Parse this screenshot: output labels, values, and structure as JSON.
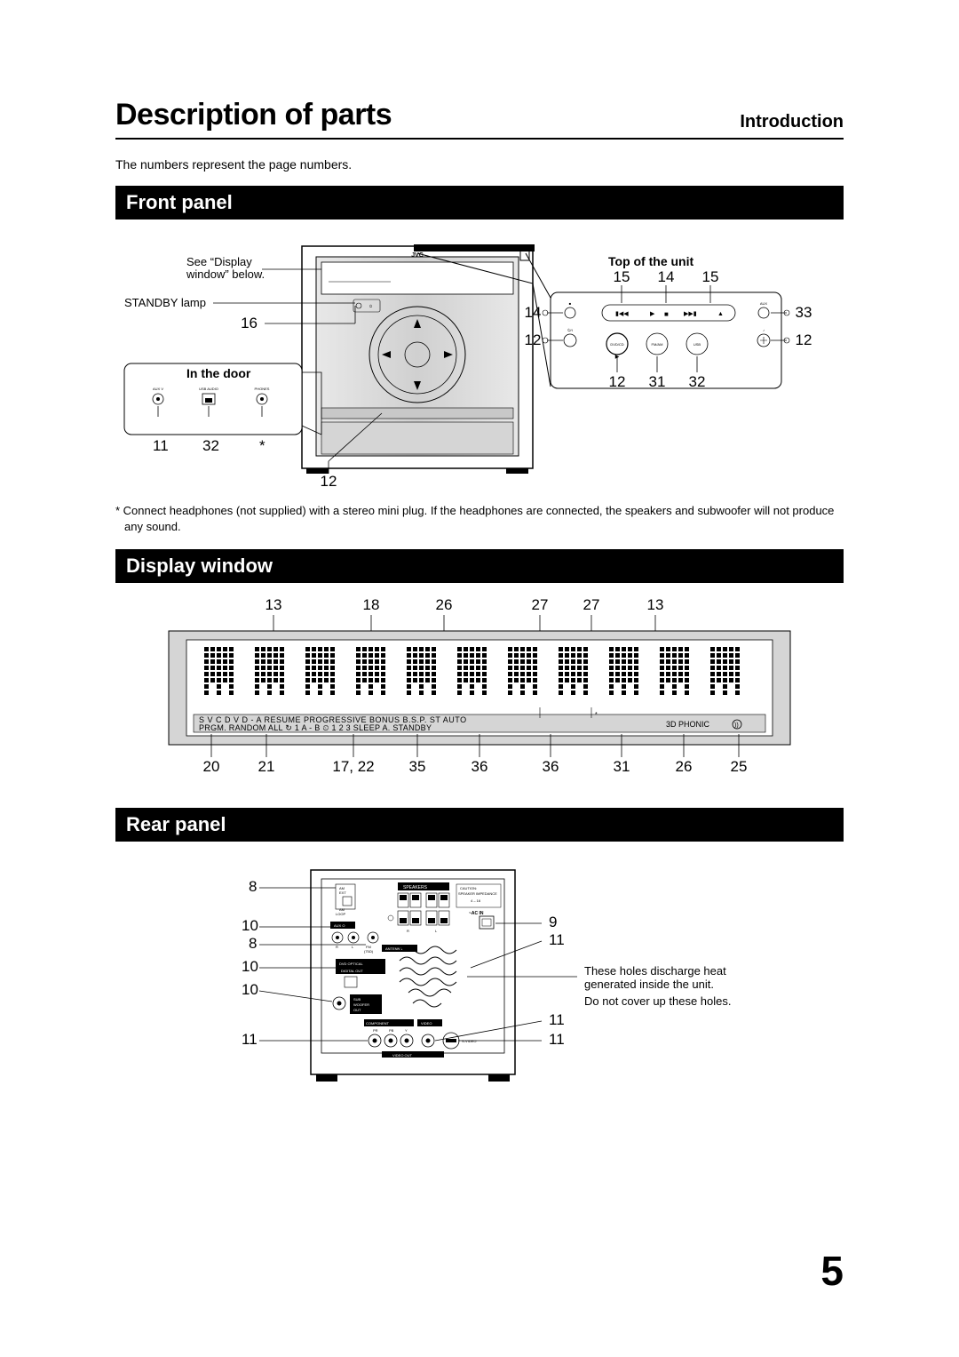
{
  "title": "Description of parts",
  "subtitle": "Introduction",
  "intro": "The numbers represent the page numbers.",
  "sections": {
    "front": "Front panel",
    "display": "Display window",
    "rear": "Rear panel"
  },
  "front_panel": {
    "top_label": "Top of the unit",
    "in_door_label": "In the door",
    "display_ref": "See “Display window” below.",
    "standby": "STANDBY lamp",
    "brand": "JVC",
    "top_nums_upper": [
      "15",
      "14",
      "15"
    ],
    "top_nums_left": [
      "14",
      "12"
    ],
    "top_nums_right": [
      "33",
      "12"
    ],
    "top_nums_lower": [
      "12",
      "31",
      "32"
    ],
    "left_num": "16",
    "door_nums": [
      "11",
      "32",
      "*"
    ],
    "bottom_num": "12",
    "door_jack_labels": [
      "AUX V",
      "USB AUDIO",
      "PHONES"
    ],
    "top_btn_labels": [
      "DVD/CD",
      "FM/AM",
      "USB"
    ],
    "standby_btn": "STANDBY",
    "aux": "AUX",
    "standby_sym": "⏻",
    "stop_sym": "■"
  },
  "display_window": {
    "top_nums": [
      "13",
      "18",
      "26",
      "27",
      "27",
      "13"
    ],
    "bot_nums": [
      "20",
      "21",
      "17, 22",
      "35",
      "36",
      "36",
      "31",
      "26",
      "25"
    ],
    "line1": "S V C D V D - A  RESUME PROGRESSIVE BONUS B.S.P. ST AUTO",
    "line2": "PRGM. RANDOM ALL ↻ 1 A - B ⏲ 1 2 3 SLEEP A. STANDBY",
    "phonic": "3D PHONIC"
  },
  "rear_panel": {
    "left_nums": [
      "8",
      "10",
      "8",
      "10",
      "10",
      "11"
    ],
    "right_nums": [
      "9",
      "11",
      "11",
      "11"
    ],
    "heat_note1": "These holes discharge heat generated inside the unit.",
    "heat_note2": "Do not cover up these holes.",
    "labels": {
      "speakers": "SPEAKERS",
      "caution": "CAUTION:\nSPEAKER IMPEDANCE\n4 – 16",
      "acin": "~AC IN",
      "ant": "ANTENNA",
      "am_ext": "AM\nEXT",
      "am_loop": "AM\nLOOP",
      "fm": "FM\n(75Ω)",
      "aux": "AUX O",
      "r": "R",
      "l": "L",
      "dvd_opt": "DVD OPTICAL\nDIGITAL OUT",
      "sub": "SUB\nWOOFER\nOUT",
      "comp": "COMPONENT",
      "video": "VIDEO",
      "svideo": "S-VIDEO",
      "videoout": "VIDEO OUT",
      "pr": "PR",
      "pb": "PB",
      "y": "Y"
    }
  },
  "footnote": "* Connect headphones (not supplied) with a stereo mini plug. If the headphones are connected, the speakers and subwoofer will not produce any sound.",
  "page_number": "5",
  "colors": {
    "text": "#000000",
    "bg": "#ffffff",
    "bar_bg": "#000000",
    "bar_fg": "#ffffff",
    "shade": "#d5d5d5",
    "shade2": "#bfbfbf"
  }
}
